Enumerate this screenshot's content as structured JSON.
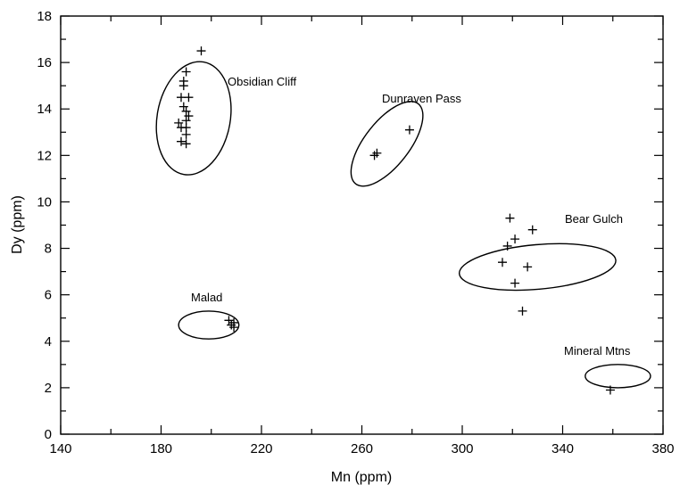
{
  "chart_data": {
    "type": "scatter",
    "title": "",
    "xlabel": "Mn (ppm)",
    "ylabel": "Dy (ppm)",
    "xlim": [
      140,
      380
    ],
    "ylim": [
      0,
      18
    ],
    "x_ticks": [
      140,
      180,
      220,
      260,
      300,
      340,
      380
    ],
    "y_ticks": [
      0,
      2,
      4,
      6,
      8,
      10,
      12,
      14,
      16,
      18
    ],
    "marker": "+",
    "grid": false,
    "groups": [
      {
        "label": "Obsidian Cliff",
        "points": [
          [
            196,
            16.5
          ],
          [
            190,
            15.6
          ],
          [
            189,
            15.2
          ],
          [
            189,
            15.0
          ],
          [
            188,
            14.5
          ],
          [
            191,
            14.5
          ],
          [
            189,
            14.1
          ],
          [
            190,
            13.9
          ],
          [
            191,
            13.7
          ],
          [
            190,
            13.5
          ],
          [
            187,
            13.4
          ],
          [
            188,
            13.2
          ],
          [
            190,
            13.2
          ],
          [
            190,
            12.9
          ],
          [
            188,
            12.6
          ],
          [
            190,
            12.5
          ]
        ],
        "ellipse": {
          "cx": 193,
          "cy": 13.6,
          "rx": 18,
          "ry": 1.9
        }
      },
      {
        "label": "Dunraven Pass",
        "points": [
          [
            265,
            12.0
          ],
          [
            266,
            12.1
          ],
          [
            279,
            13.1
          ]
        ],
        "ellipse": {
          "cx": 270,
          "cy": 12.5,
          "rx": 19,
          "ry": 0.9
        }
      },
      {
        "label": "Bear Gulch",
        "points": [
          [
            319,
            9.3
          ],
          [
            328,
            8.8
          ],
          [
            321,
            8.4
          ],
          [
            318,
            8.1
          ],
          [
            316,
            7.4
          ],
          [
            326,
            7.2
          ],
          [
            321,
            6.5
          ],
          [
            324,
            5.3
          ]
        ],
        "ellipse": {
          "cx": 330,
          "cy": 7.2,
          "rx": 40,
          "ry": 1.1
        }
      },
      {
        "label": "Malad",
        "points": [
          [
            207,
            4.9
          ],
          [
            208,
            4.7
          ],
          [
            209,
            4.6
          ],
          [
            209,
            4.8
          ]
        ],
        "ellipse": {
          "cx": 199,
          "cy": 4.7,
          "rx": 12,
          "ry": 0.6
        }
      },
      {
        "label": "Mineral Mtns",
        "points": [
          [
            359,
            1.9
          ]
        ],
        "ellipse": {
          "cx": 362,
          "cy": 2.5,
          "rx": 13,
          "ry": 0.5
        }
      }
    ]
  }
}
